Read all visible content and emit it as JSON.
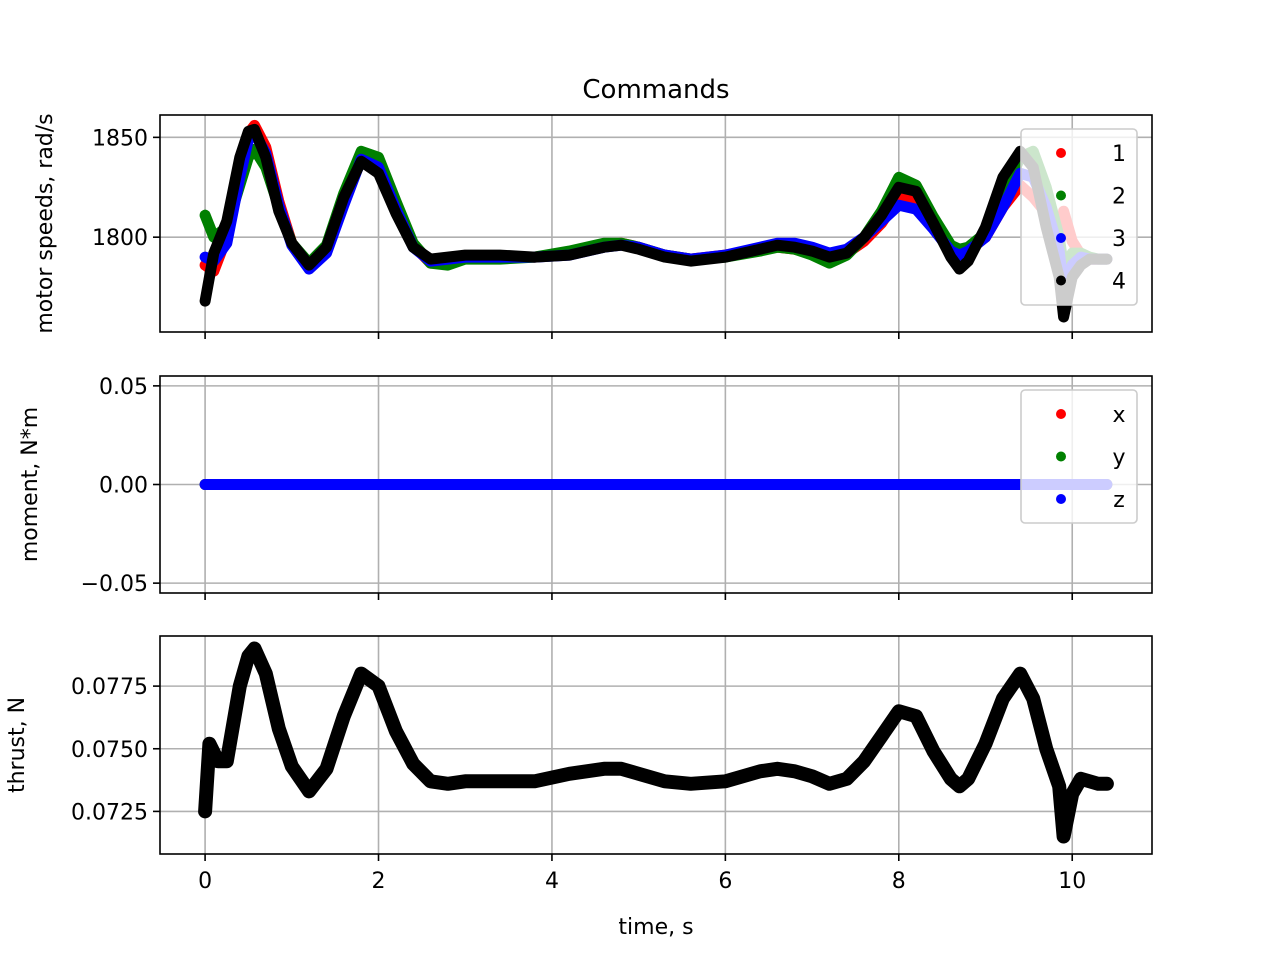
{
  "chart_data": [
    {
      "type": "scatter",
      "title": "Commands",
      "xlabel": "",
      "ylabel": "motor speeds, rad/s",
      "xlim": [
        -0.52,
        10.92
      ],
      "ylim": [
        1752.5,
        1861.2
      ],
      "xticks": [
        0,
        2,
        4,
        6,
        8,
        10
      ],
      "show_xtick_labels": false,
      "yticks": [
        1800,
        1850
      ],
      "ytick_labels": [
        "1800",
        "1850"
      ],
      "grid": true,
      "legend": "top-right",
      "series": [
        {
          "name": "1",
          "color": "#ff0000",
          "x": [
            0.0,
            0.1,
            0.25,
            0.4,
            0.5,
            0.57,
            0.7,
            0.85,
            1.0,
            1.2,
            1.4,
            1.6,
            1.8,
            2.0,
            2.2,
            2.4,
            2.6,
            2.8,
            3.0,
            3.4,
            3.8,
            4.2,
            4.6,
            4.8,
            5.0,
            5.3,
            5.6,
            6.0,
            6.4,
            6.6,
            6.8,
            7.0,
            7.2,
            7.4,
            7.6,
            7.8,
            8.0,
            8.2,
            8.4,
            8.6,
            8.7,
            8.8,
            9.0,
            9.2,
            9.4,
            9.55,
            9.7,
            9.85,
            9.9,
            10.0,
            10.1,
            10.2,
            10.3,
            10.4
          ],
          "y": [
            1786,
            1783,
            1800,
            1833,
            1852,
            1856,
            1845,
            1818,
            1797,
            1786,
            1794,
            1818,
            1839,
            1835,
            1815,
            1796,
            1787,
            1788,
            1790,
            1790,
            1790,
            1792,
            1796,
            1797,
            1795,
            1791,
            1789,
            1791,
            1794,
            1795,
            1794,
            1792,
            1790,
            1792,
            1798,
            1807,
            1820,
            1818,
            1806,
            1795,
            1793,
            1794,
            1800,
            1815,
            1826,
            1820,
            1812,
            1795,
            1813,
            1798,
            1791,
            1789,
            1789,
            1789
          ]
        },
        {
          "name": "2",
          "color": "#008000",
          "x": [
            0.0,
            0.1,
            0.25,
            0.4,
            0.5,
            0.57,
            0.7,
            0.85,
            1.0,
            1.2,
            1.4,
            1.6,
            1.8,
            2.0,
            2.2,
            2.4,
            2.6,
            2.8,
            3.0,
            3.4,
            3.8,
            4.2,
            4.6,
            4.8,
            5.0,
            5.3,
            5.6,
            6.0,
            6.4,
            6.6,
            6.8,
            7.0,
            7.2,
            7.4,
            7.6,
            7.8,
            8.0,
            8.2,
            8.4,
            8.6,
            8.7,
            8.8,
            9.0,
            9.2,
            9.4,
            9.55,
            9.7,
            9.85,
            9.9,
            10.0,
            10.1,
            10.2,
            10.3,
            10.4
          ],
          "y": [
            1811,
            1800,
            1805,
            1826,
            1840,
            1844,
            1835,
            1815,
            1797,
            1787,
            1796,
            1822,
            1843,
            1840,
            1818,
            1797,
            1787,
            1786,
            1789,
            1789,
            1790,
            1793,
            1797,
            1797,
            1795,
            1791,
            1789,
            1790,
            1793,
            1795,
            1794,
            1791,
            1787,
            1791,
            1800,
            1813,
            1830,
            1826,
            1810,
            1796,
            1794,
            1795,
            1802,
            1820,
            1840,
            1843,
            1825,
            1800,
            1785,
            1792,
            1792,
            1790,
            1789,
            1789
          ]
        },
        {
          "name": "3",
          "color": "#0000ff",
          "x": [
            0.0,
            0.1,
            0.25,
            0.4,
            0.5,
            0.57,
            0.7,
            0.85,
            1.0,
            1.2,
            1.4,
            1.6,
            1.8,
            2.0,
            2.2,
            2.4,
            2.6,
            2.8,
            3.0,
            3.4,
            3.8,
            4.2,
            4.6,
            4.8,
            5.0,
            5.3,
            5.6,
            6.0,
            6.4,
            6.6,
            6.8,
            7.0,
            7.2,
            7.4,
            7.6,
            7.8,
            8.0,
            8.2,
            8.4,
            8.6,
            8.7,
            8.8,
            9.0,
            9.2,
            9.4,
            9.55,
            9.7,
            9.85,
            9.9,
            10.0,
            10.1,
            10.2,
            10.3,
            10.4
          ],
          "y": [
            1790,
            1788,
            1797,
            1830,
            1849,
            1852,
            1842,
            1816,
            1796,
            1784,
            1792,
            1816,
            1839,
            1835,
            1814,
            1795,
            1788,
            1789,
            1790,
            1790,
            1790,
            1791,
            1795,
            1796,
            1795,
            1791,
            1789,
            1791,
            1795,
            1797,
            1797,
            1795,
            1792,
            1794,
            1800,
            1808,
            1816,
            1814,
            1804,
            1793,
            1791,
            1793,
            1800,
            1815,
            1832,
            1830,
            1815,
            1793,
            1775,
            1786,
            1790,
            1789,
            1789,
            1789
          ]
        },
        {
          "name": "4",
          "color": "#000000",
          "x": [
            0.0,
            0.1,
            0.25,
            0.4,
            0.5,
            0.57,
            0.7,
            0.85,
            1.0,
            1.2,
            1.4,
            1.6,
            1.8,
            2.0,
            2.2,
            2.4,
            2.6,
            2.8,
            3.0,
            3.4,
            3.8,
            4.2,
            4.6,
            4.8,
            5.0,
            5.3,
            5.6,
            6.0,
            6.4,
            6.6,
            6.8,
            7.0,
            7.2,
            7.4,
            7.6,
            7.8,
            8.0,
            8.2,
            8.4,
            8.6,
            8.7,
            8.8,
            9.0,
            9.2,
            9.4,
            9.55,
            9.7,
            9.85,
            9.9,
            10.0,
            10.1,
            10.2,
            10.3,
            10.4
          ],
          "y": [
            1768,
            1792,
            1808,
            1840,
            1853,
            1854,
            1840,
            1813,
            1797,
            1786,
            1795,
            1820,
            1838,
            1832,
            1812,
            1795,
            1789,
            1790,
            1791,
            1791,
            1790,
            1791,
            1795,
            1796,
            1794,
            1790,
            1788,
            1790,
            1794,
            1796,
            1795,
            1793,
            1790,
            1792,
            1800,
            1811,
            1825,
            1823,
            1807,
            1790,
            1784,
            1788,
            1805,
            1830,
            1843,
            1835,
            1805,
            1780,
            1760,
            1780,
            1786,
            1789,
            1789,
            1789
          ]
        }
      ]
    },
    {
      "type": "scatter",
      "title": "",
      "xlabel": "",
      "ylabel": "moment, N*m",
      "xlim": [
        -0.52,
        10.92
      ],
      "ylim": [
        -0.055,
        0.055
      ],
      "xticks": [
        0,
        2,
        4,
        6,
        8,
        10
      ],
      "show_xtick_labels": false,
      "yticks": [
        -0.05,
        0.0,
        0.05
      ],
      "ytick_labels": [
        "−0.05",
        "0.00",
        "0.05"
      ],
      "grid": true,
      "legend": "top-right",
      "series": [
        {
          "name": "x",
          "color": "#ff0000",
          "x": [
            0.0,
            10.4
          ],
          "y": [
            0.0,
            0.0
          ]
        },
        {
          "name": "y",
          "color": "#008000",
          "x": [
            0.0,
            10.4
          ],
          "y": [
            0.0,
            0.0
          ]
        },
        {
          "name": "z",
          "color": "#0000ff",
          "x": [
            0.0,
            10.4
          ],
          "y": [
            0.0,
            0.0
          ]
        }
      ]
    },
    {
      "type": "scatter",
      "title": "",
      "xlabel": "time, s",
      "ylabel": "thrust, N",
      "xlim": [
        -0.52,
        10.92
      ],
      "ylim": [
        0.0708,
        0.0795
      ],
      "xticks": [
        0,
        2,
        4,
        6,
        8,
        10
      ],
      "xtick_labels": [
        "0",
        "2",
        "4",
        "6",
        "8",
        "10"
      ],
      "show_xtick_labels": true,
      "yticks": [
        0.0725,
        0.075,
        0.0775
      ],
      "ytick_labels": [
        "0.0725",
        "0.0750",
        "0.0775"
      ],
      "grid": true,
      "legend": "none",
      "series": [
        {
          "name": "",
          "color": "#000000",
          "x": [
            0.0,
            0.05,
            0.15,
            0.25,
            0.4,
            0.5,
            0.57,
            0.7,
            0.85,
            1.0,
            1.2,
            1.4,
            1.6,
            1.8,
            2.0,
            2.2,
            2.4,
            2.6,
            2.8,
            3.0,
            3.4,
            3.8,
            4.2,
            4.6,
            4.8,
            5.0,
            5.3,
            5.6,
            6.0,
            6.4,
            6.6,
            6.8,
            7.0,
            7.2,
            7.4,
            7.6,
            7.8,
            8.0,
            8.2,
            8.4,
            8.6,
            8.7,
            8.8,
            9.0,
            9.2,
            9.4,
            9.55,
            9.7,
            9.85,
            9.9,
            10.0,
            10.1,
            10.2,
            10.3,
            10.4
          ],
          "y": [
            0.0725,
            0.0752,
            0.0745,
            0.0745,
            0.0775,
            0.0787,
            0.079,
            0.078,
            0.0758,
            0.0743,
            0.0733,
            0.0742,
            0.0763,
            0.078,
            0.0775,
            0.0757,
            0.0744,
            0.0737,
            0.0736,
            0.0737,
            0.0737,
            0.0737,
            0.074,
            0.0742,
            0.0742,
            0.074,
            0.0737,
            0.0736,
            0.0737,
            0.0741,
            0.0742,
            0.0741,
            0.0739,
            0.0736,
            0.0738,
            0.0745,
            0.0755,
            0.0765,
            0.0763,
            0.0749,
            0.0738,
            0.0735,
            0.0738,
            0.0752,
            0.077,
            0.078,
            0.077,
            0.075,
            0.0735,
            0.0715,
            0.0732,
            0.0738,
            0.0737,
            0.0736,
            0.0736
          ]
        }
      ]
    }
  ]
}
